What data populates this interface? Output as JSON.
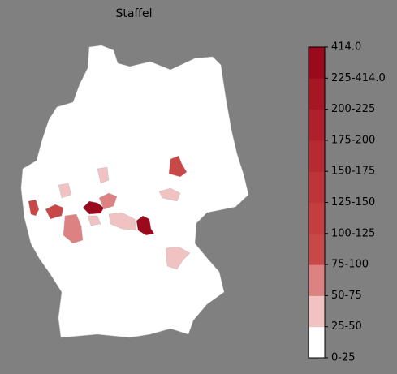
{
  "title": "Staffel",
  "colorbar": {
    "labels": [
      "0-25",
      "25-50",
      "50-75",
      "75-100",
      "100-125",
      "125-150",
      "150-175",
      "175-200",
      "200-225",
      "225-414.0",
      "414.0"
    ],
    "colors": [
      "#ffffff",
      "#f0c2c2",
      "#dc8282",
      "#c84848",
      "#c43e40",
      "#be3438",
      "#b82a32",
      "#b0202c",
      "#a61624",
      "#9a0a1c"
    ]
  }
}
